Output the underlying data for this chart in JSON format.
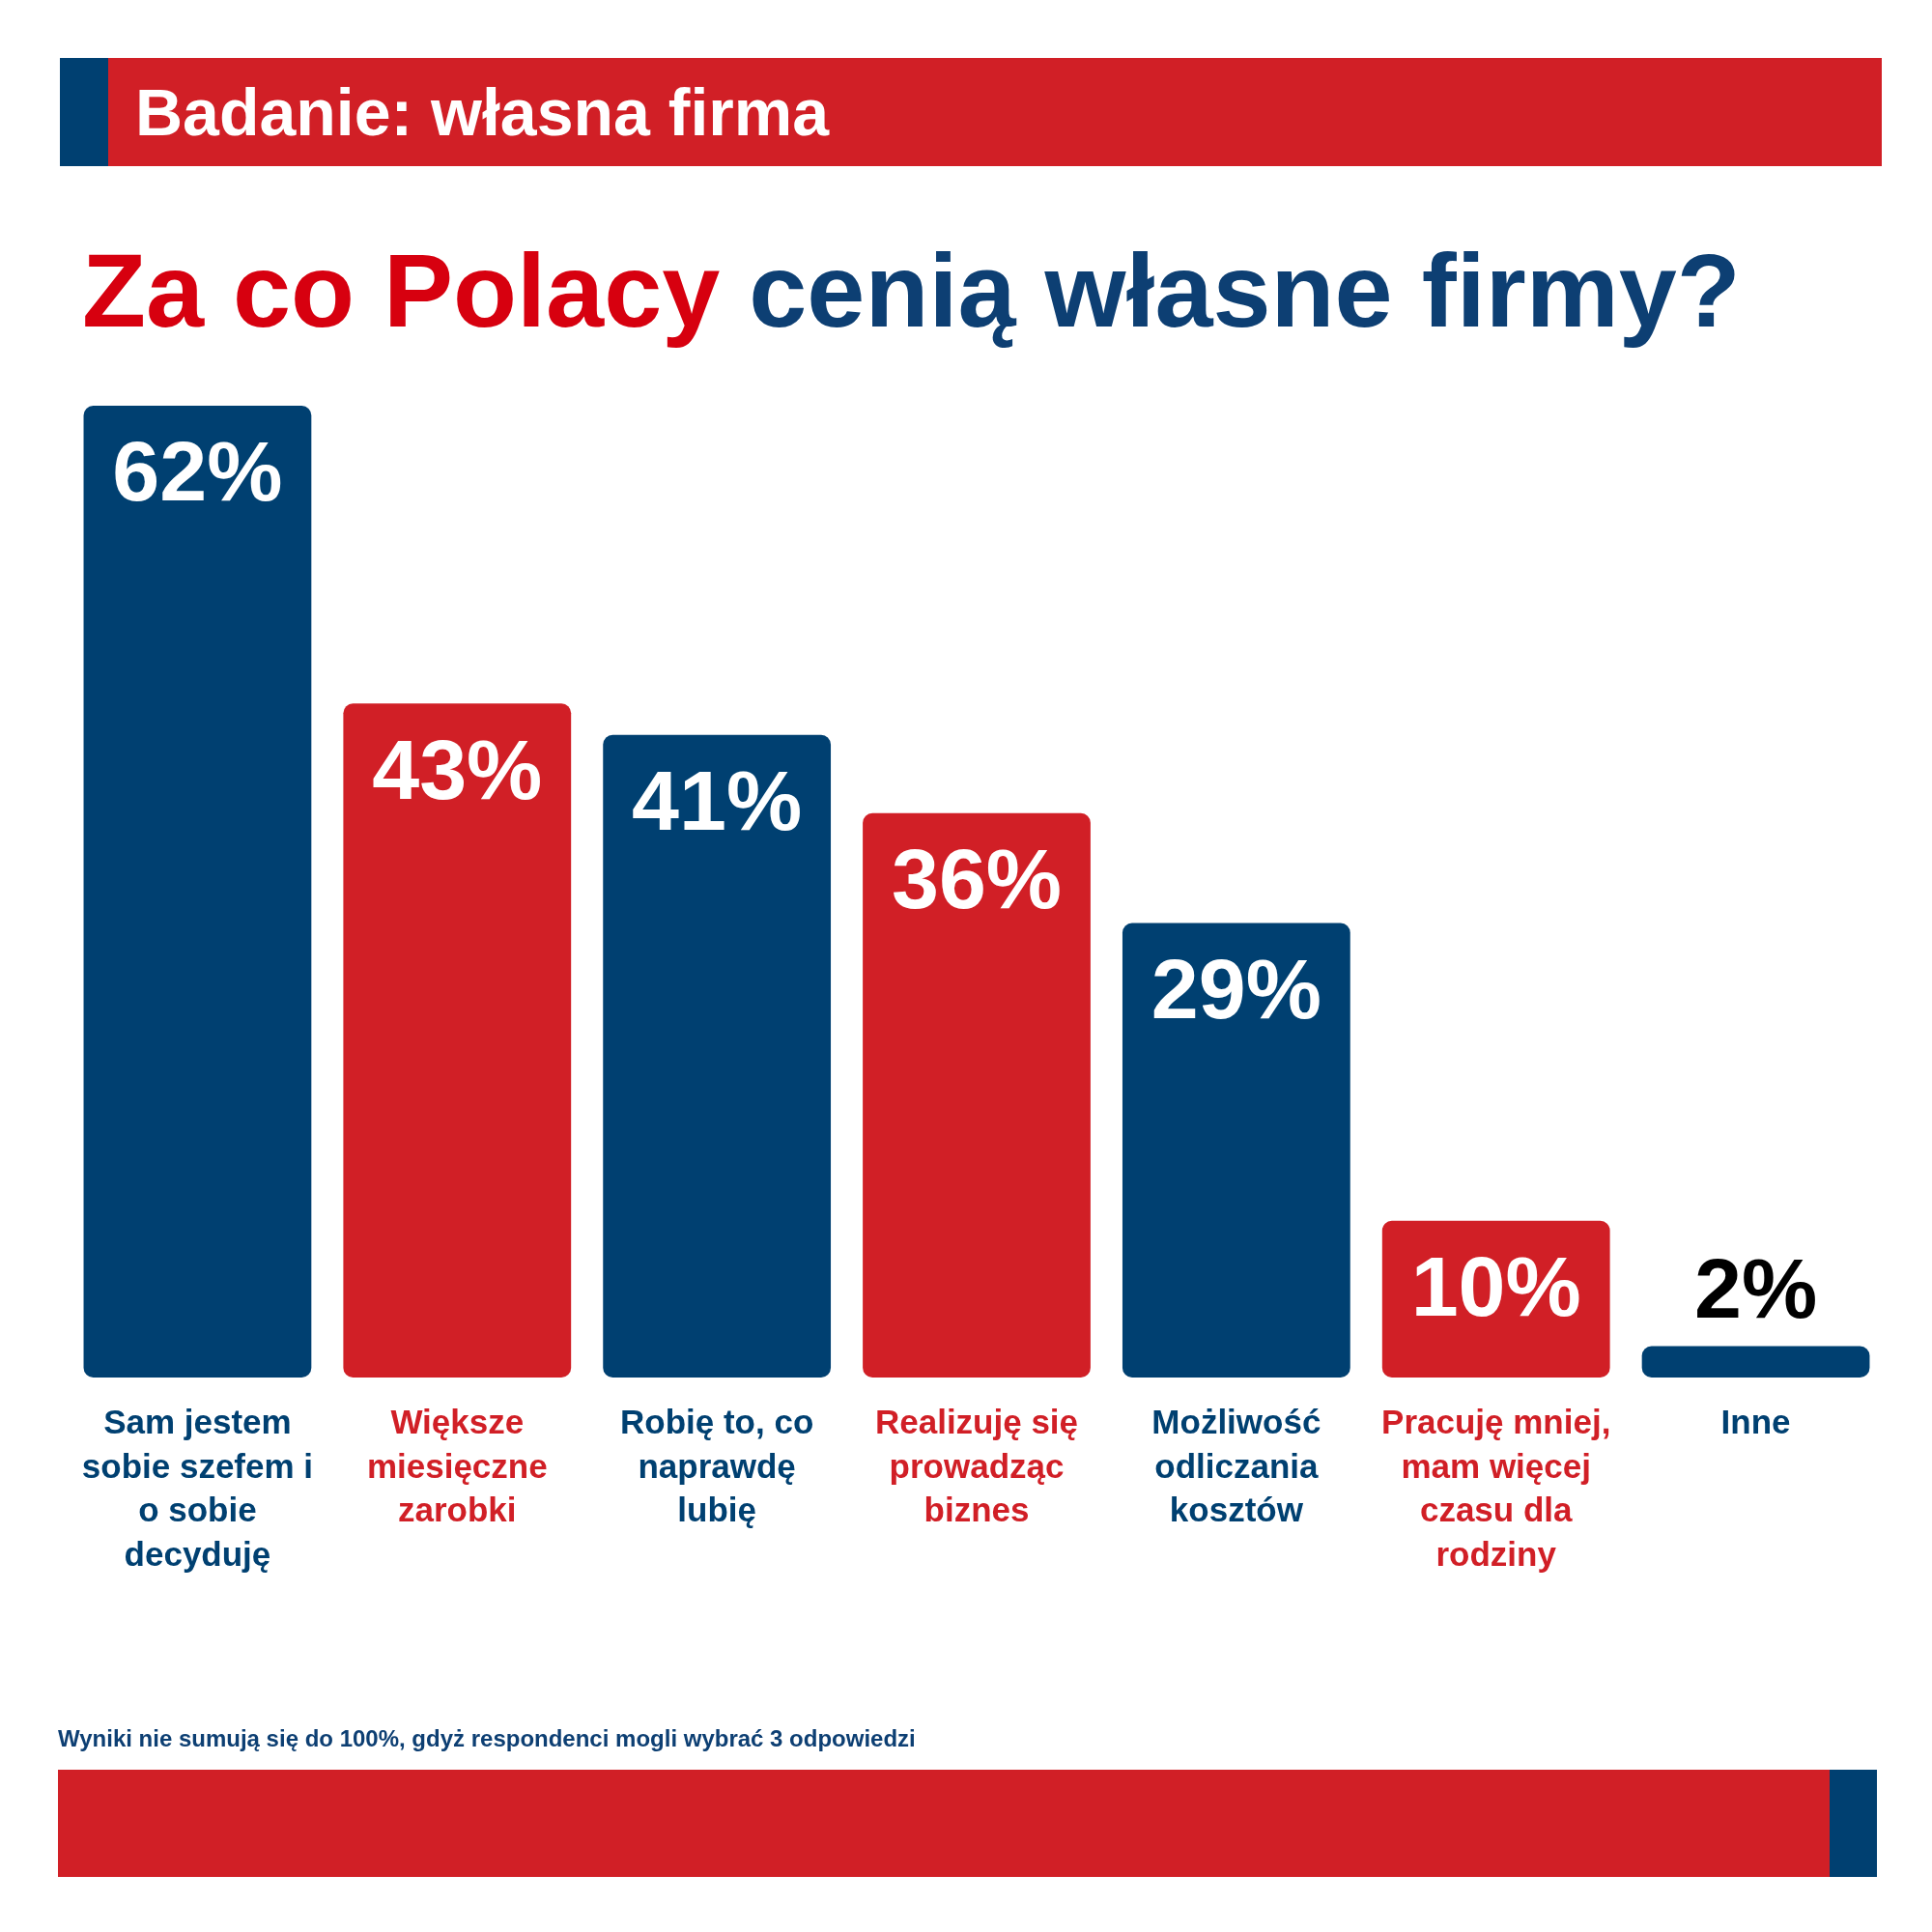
{
  "chart_data": {
    "type": "bar",
    "subtitle": "Badanie: własna firma",
    "title": "Za co Polacy cenią własne firmy?",
    "categories": [
      "Sam jestem sobie szefem i o sobie decyduję",
      "Większe miesięczne zarobki",
      "Robię to, co naprawdę lubię",
      "Realizuję się prowadząc biznes",
      "Możliwość odliczania kosztów",
      "Pracuję mniej, mam więcej czasu dla rodziny",
      "Inne"
    ],
    "values": [
      62,
      43,
      41,
      36,
      29,
      10,
      2
    ],
    "colors": [
      "#004071",
      "#d11f26",
      "#004071",
      "#d11f26",
      "#004071",
      "#d11f26",
      "#004071"
    ],
    "value_labels": [
      "62%",
      "43%",
      "41%",
      "36%",
      "29%",
      "10%",
      "2%"
    ],
    "ylim": [
      0,
      62
    ],
    "tick_labels": "x",
    "annotations": [
      "Wyniki nie sumują się do 100%, gdyż respondenci mogli wybrać 3 odpowiedzi"
    ]
  }
}
